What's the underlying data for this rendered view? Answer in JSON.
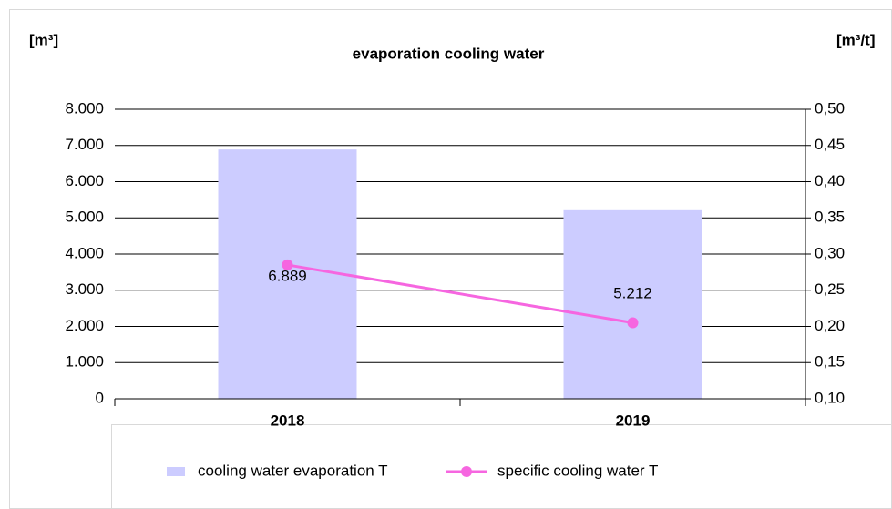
{
  "chart_data": {
    "type": "bar",
    "title": "evaporation cooling water",
    "y_label": "[m³]",
    "y2_label": "[m³/t]",
    "categories": [
      "2018",
      "2019"
    ],
    "series": [
      {
        "name": "cooling water evaporation T",
        "type": "bar",
        "color": "#ccccff",
        "values": [
          6889,
          5212
        ],
        "value_labels": [
          "6.889",
          "5.212"
        ]
      },
      {
        "name": "specific cooling water T",
        "type": "line",
        "axis": "y2",
        "color": "#f666e0",
        "values": [
          0.285,
          0.205
        ]
      }
    ],
    "ylim": [
      0,
      8000
    ],
    "yticks": [
      0,
      {
        "value": 1000,
        "label": "1.000"
      },
      {
        "value": 2000,
        "label": "2.000"
      },
      {
        "value": 3000,
        "label": "3.000"
      },
      {
        "value": 4000,
        "label": "4.000"
      },
      {
        "value": 5000,
        "label": "5.000"
      },
      {
        "value": 6000,
        "label": "6.000"
      },
      {
        "value": 7000,
        "label": "7.000"
      },
      {
        "value": 8000,
        "label": "8.000"
      }
    ],
    "y2lim": [
      0.1,
      0.5
    ],
    "y2ticks": [
      {
        "value": 0.1,
        "label": "0,10"
      },
      {
        "value": 0.15,
        "label": "0,15"
      },
      {
        "value": 0.2,
        "label": "0,20"
      },
      {
        "value": 0.25,
        "label": "0,25"
      },
      {
        "value": 0.3,
        "label": "0,30"
      },
      {
        "value": 0.35,
        "label": "0,35"
      },
      {
        "value": 0.4,
        "label": "0,40"
      },
      {
        "value": 0.45,
        "label": "0,45"
      },
      {
        "value": 0.5,
        "label": "0,50"
      }
    ],
    "grid": true,
    "legend": "bottom"
  }
}
